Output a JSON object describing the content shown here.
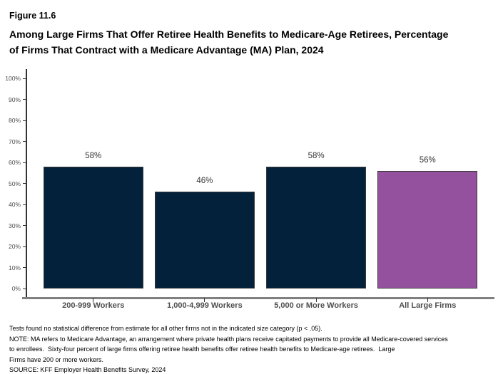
{
  "header": {
    "figure_label": "Figure 11.6",
    "title_lines": [
      "Among Large Firms That Offer Retiree Health Benefits to Medicare-Age Retirees, Percentage",
      "of Firms That Contract with a Medicare Advantage (MA) Plan, 2024"
    ]
  },
  "chart_data": {
    "type": "bar",
    "title": "Among Large Firms That Offer Retiree Health Benefits to Medicare-Age Retirees, Percentage of Firms That Contract with a Medicare Advantage (MA) Plan, 2024",
    "categories": [
      "200-999 Workers",
      "1,000-4,999 Workers",
      "5,000 or More Workers",
      "All Large Firms"
    ],
    "values": [
      58,
      46,
      58,
      56
    ],
    "value_labels": [
      "58%",
      "46%",
      "58%",
      "56%"
    ],
    "bar_colors": [
      "#03213a",
      "#03213a",
      "#03213a",
      "#94529e"
    ],
    "xlabel": "",
    "ylabel": "",
    "ylim": [
      0,
      100
    ],
    "ytick_labels": [
      "0%",
      "10%",
      "20%",
      "30%",
      "40%",
      "50%",
      "60%",
      "70%",
      "80%",
      "90%",
      "100%"
    ],
    "grid": false,
    "legend": "none"
  },
  "colors": {
    "bar_navy": "#03213a",
    "bar_purple": "#94529e",
    "bar_border": "#3a3a3a",
    "y_axis_line": "#333333",
    "x_axis_line": "#808080",
    "tick_label": "#4d4d4d",
    "value_label": "#333333"
  },
  "footnotes": {
    "lines": [
      "Tests found no statistical difference from estimate for all other firms not in the indicated size category (p < .05).",
      "NOTE: MA refers to Medicare Advantage, an arrangement where private health plans receive capitated payments to provide all Medicare-covered services",
      "to enrollees.  Sixty-four percent of large firms offering retiree health benefits offer retiree health benefits to Medicare-age retirees.  Large",
      "Firms have 200 or more workers.",
      "SOURCE: KFF Employer Health Benefits Survey, 2024"
    ]
  }
}
